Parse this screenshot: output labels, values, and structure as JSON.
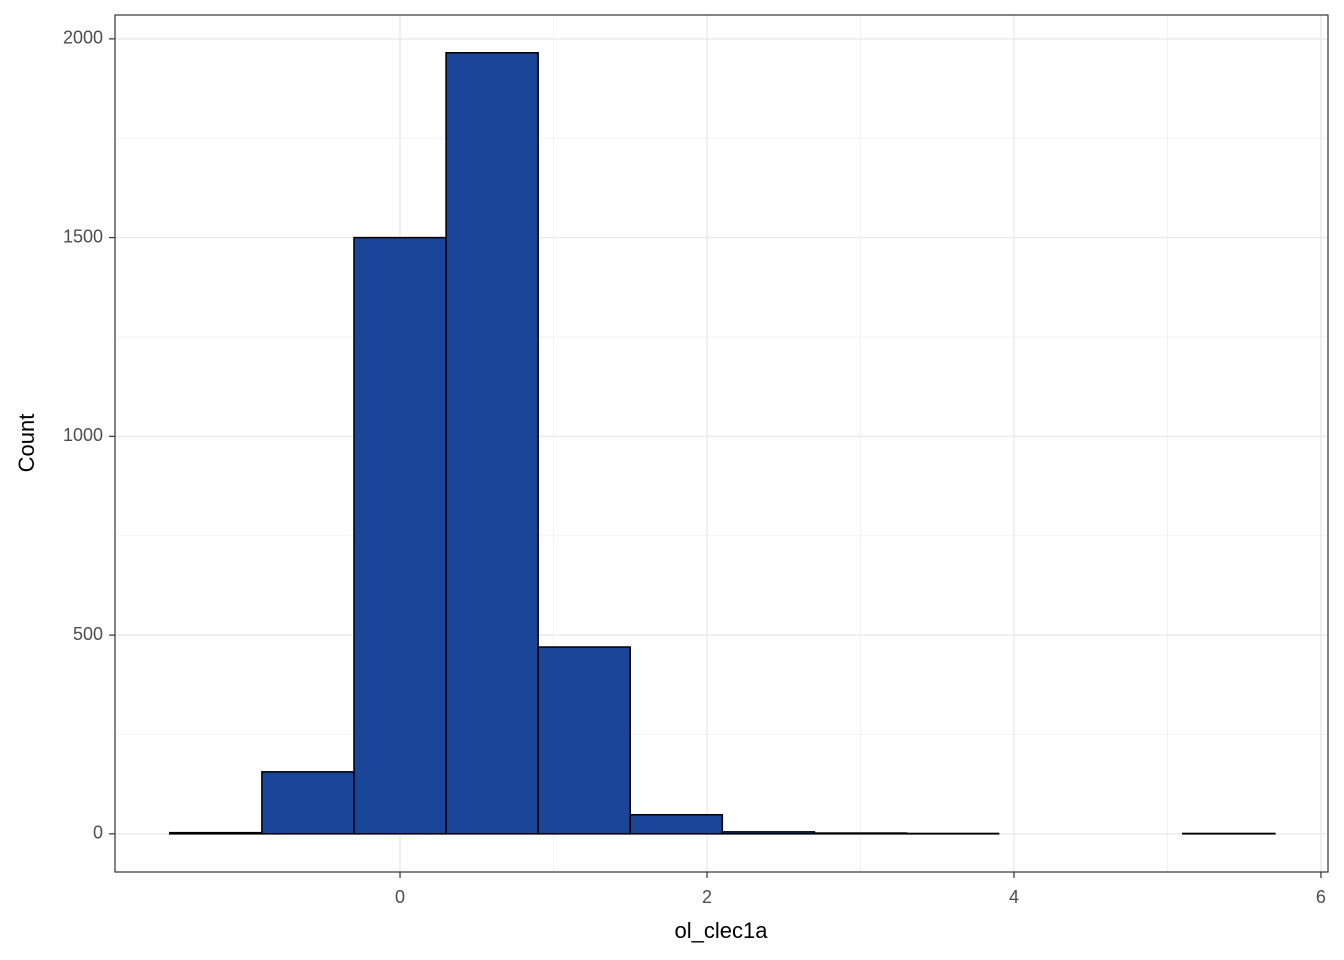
{
  "chart_data": {
    "type": "histogram",
    "x_label": "ol_clec1a",
    "y_label": "Count",
    "bins": [
      -1.5,
      -0.9,
      -0.3,
      0.3,
      0.9,
      1.5,
      2.1,
      2.7,
      3.3,
      3.9,
      4.5,
      5.1,
      5.7
    ],
    "values": [
      3,
      156,
      1500,
      1965,
      470,
      48,
      5,
      2,
      1,
      0,
      0,
      1
    ],
    "color": "#1a4599",
    "edge_color": "#000000",
    "xlim": [
      -1.857,
      6.046
    ],
    "ylim": [
      -96,
      2060
    ],
    "xticks": [
      0,
      2,
      4,
      6
    ],
    "yticks": [
      0,
      500,
      1000,
      1500,
      2000
    ],
    "grid": true,
    "minor_grid": true
  }
}
